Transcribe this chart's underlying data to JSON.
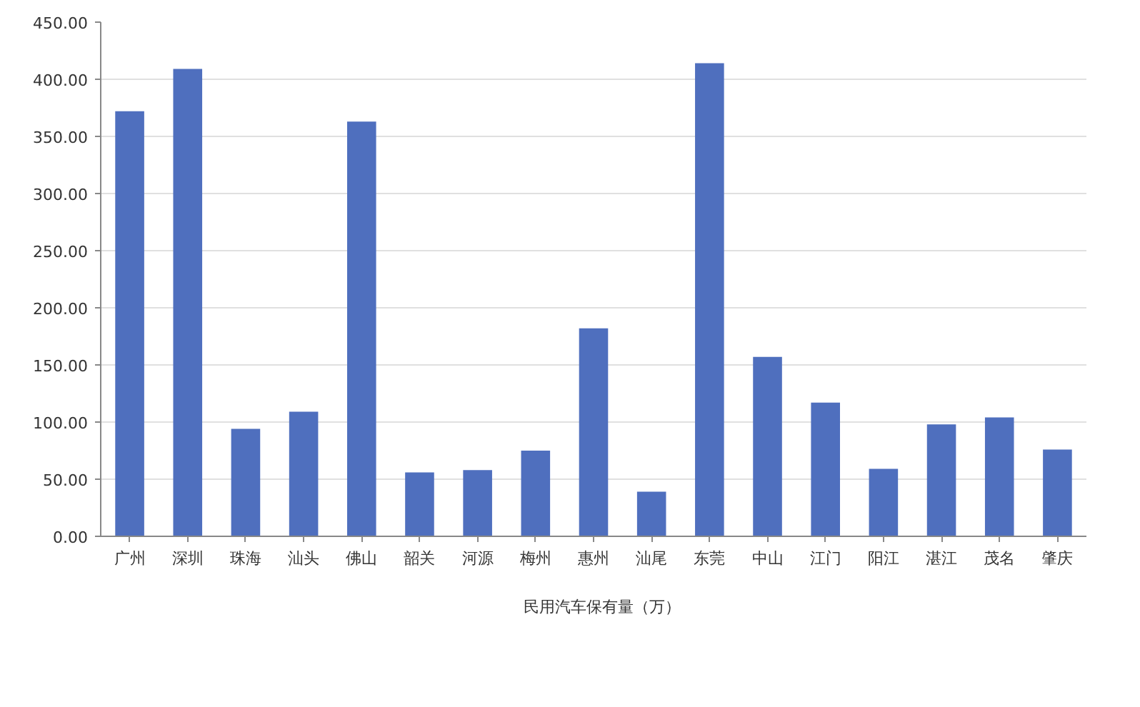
{
  "chart_data": {
    "type": "bar",
    "categories": [
      "广州",
      "深圳",
      "珠海",
      "汕头",
      "佛山",
      "韶关",
      "河源",
      "梅州",
      "惠州",
      "汕尾",
      "东莞",
      "中山",
      "江门",
      "阳江",
      "湛江",
      "茂名",
      "肇庆"
    ],
    "series": [
      {
        "name": "民用汽车保有量（万）",
        "color": "#4f6fbe",
        "values": [
          372,
          409,
          94,
          109,
          363,
          56,
          58,
          75,
          182,
          39,
          414,
          157,
          117,
          59,
          98,
          104,
          76
        ]
      }
    ],
    "ylim": [
      0,
      450
    ],
    "yticks": [
      {
        "value": 0,
        "label": "0.00"
      },
      {
        "value": 50,
        "label": "50.00"
      },
      {
        "value": 100,
        "label": "100.00"
      },
      {
        "value": 150,
        "label": "150.00"
      },
      {
        "value": 200,
        "label": "200.00"
      },
      {
        "value": 250,
        "label": "250.00"
      },
      {
        "value": 300,
        "label": "300.00"
      },
      {
        "value": 350,
        "label": "350.00"
      },
      {
        "value": 400,
        "label": "400.00"
      },
      {
        "value": 450,
        "label": "450.00"
      }
    ],
    "grid": "y",
    "legend": "bottom"
  }
}
